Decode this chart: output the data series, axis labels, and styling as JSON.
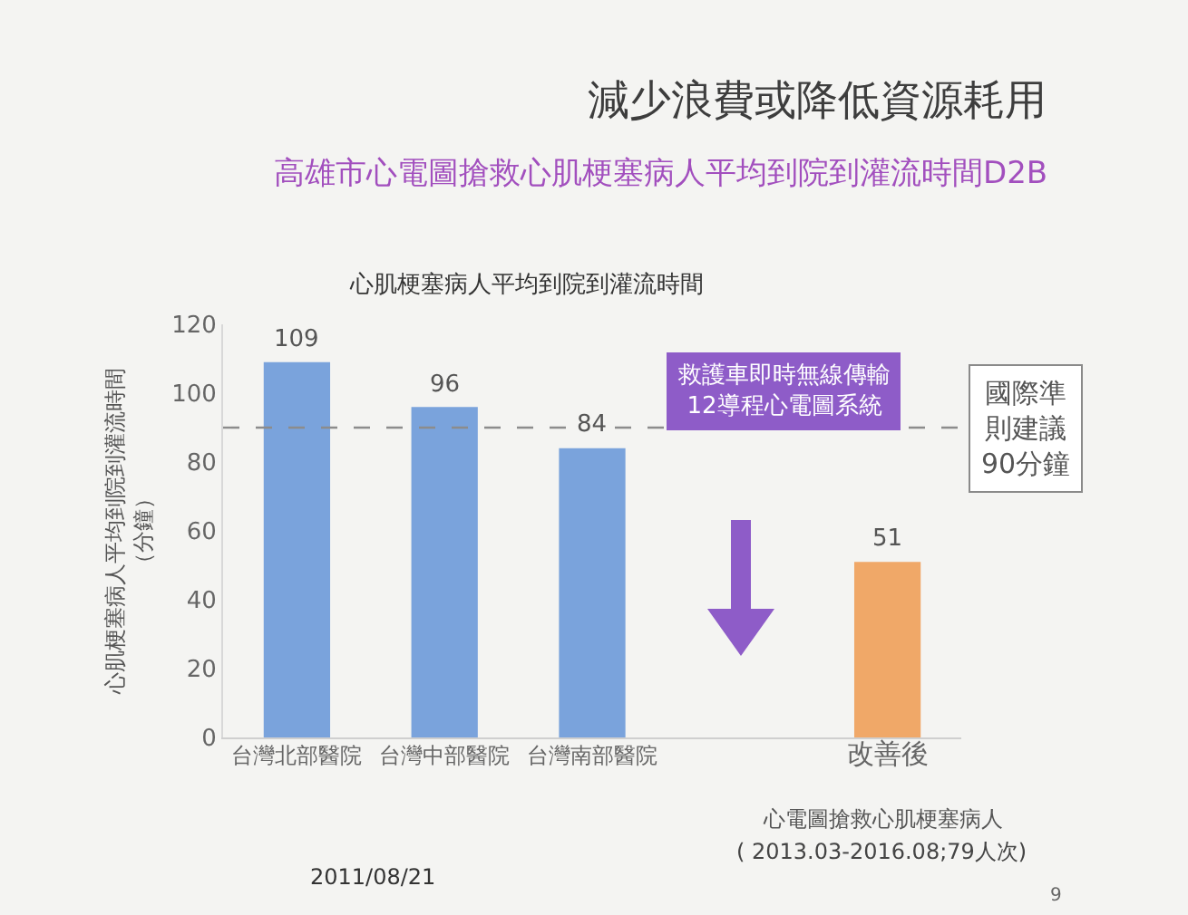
{
  "chart_data": {
    "type": "bar",
    "title": "減少浪費或降低資源耗用",
    "subtitle": "高雄市心電圖搶救心肌梗塞病人平均到院到灌流時間D2B",
    "ylabel": "心肌梗塞病人平均到院到灌流時間（分鐘）",
    "categories": [
      "台灣北部醫院",
      "台灣中部醫院",
      "台灣南部醫院",
      null,
      "改善後"
    ],
    "values": [
      109,
      96,
      84,
      null,
      51
    ],
    "colors": [
      "#7aa3dc",
      "#7aa3dc",
      "#7aa3dc",
      null,
      "#f0a868"
    ],
    "ylim": [
      0,
      120
    ],
    "yticks": [
      0,
      20,
      40,
      60,
      80,
      100,
      120
    ],
    "grid": false,
    "data_labels": true,
    "ref_lines": [
      {
        "axis": "y",
        "value": 90,
        "label": "國際準則建議90分鐘",
        "color": "#8c8c8c",
        "line_style": "dashed"
      }
    ],
    "annotations": [
      "心肌梗塞病人平均到院到灌流時間",
      "救護車即時無線傳輸12導程心電圖系統",
      "心電圖搶救心肌梗塞病人",
      "( 2013.03-2016.08;79人次)",
      "2011/08/21",
      "9"
    ]
  }
}
